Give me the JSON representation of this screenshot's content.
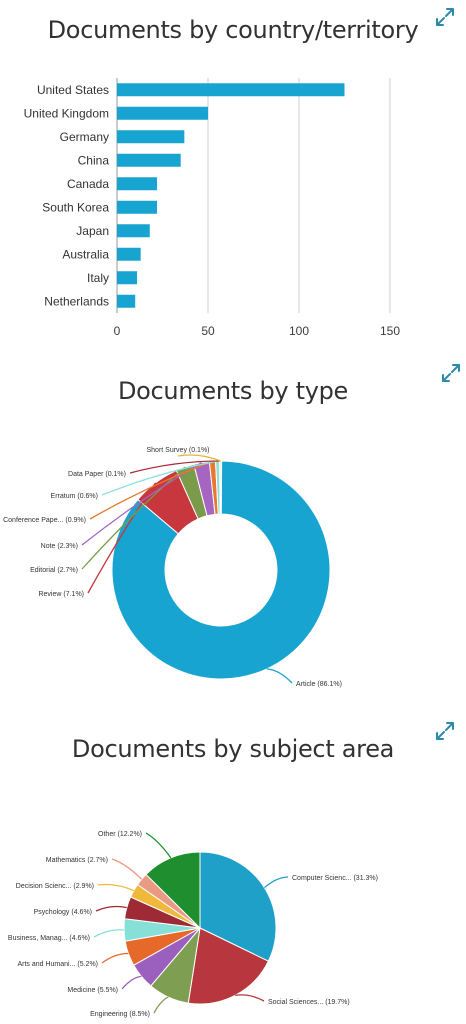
{
  "colors": {
    "bar": "#18A4D1",
    "expand_icon": "#2A8AA8",
    "grid": "#cfcfcf"
  },
  "icons": {
    "expand": "expand-arrows-icon"
  },
  "country": {
    "title": "Documents by country/territory",
    "chart_data": {
      "type": "bar",
      "orientation": "horizontal",
      "categories": [
        "United States",
        "United Kingdom",
        "Germany",
        "China",
        "Canada",
        "South Korea",
        "Japan",
        "Australia",
        "Italy",
        "Netherlands"
      ],
      "values": [
        125,
        50,
        37,
        35,
        22,
        22,
        18,
        13,
        11,
        10
      ],
      "xticks": [
        "0",
        "50",
        "100",
        "150"
      ],
      "xlim": [
        0,
        150
      ],
      "grid": true
    }
  },
  "type": {
    "title": "Documents by type",
    "chart_data": {
      "type": "pie",
      "donut": true,
      "slices": [
        {
          "label": "Article (86.1%)",
          "value": 86.1,
          "color": "#18A4D1"
        },
        {
          "label": "Review (7.1%)",
          "value": 7.1,
          "color": "#C8363E"
        },
        {
          "label": "Editorial (2.7%)",
          "value": 2.7,
          "color": "#7B9A4A"
        },
        {
          "label": "Note (2.3%)",
          "value": 2.3,
          "color": "#A565C0"
        },
        {
          "label": "Conference Pape... (0.9%)",
          "value": 0.9,
          "color": "#E8782E"
        },
        {
          "label": "Erratum (0.6%)",
          "value": 0.6,
          "color": "#8FE0DA"
        },
        {
          "label": "Data Paper (0.1%)",
          "value": 0.1,
          "color": "#A82E3A"
        },
        {
          "label": "Short Survey (0.1%)",
          "value": 0.1,
          "color": "#E8B33A"
        }
      ]
    }
  },
  "subject": {
    "title": "Documents by subject area",
    "chart_data": {
      "type": "pie",
      "slices": [
        {
          "label": "Computer Scienc... (31.3%)",
          "value": 31.3,
          "color": "#1EA0C8"
        },
        {
          "label": "Social Sciences... (19.7%)",
          "value": 19.7,
          "color": "#B8373E"
        },
        {
          "label": "Engineering (8.5%)",
          "value": 8.5,
          "color": "#7E9E52"
        },
        {
          "label": "Medicine (5.5%)",
          "value": 5.5,
          "color": "#9B5FBE"
        },
        {
          "label": "Arts and Humani... (5.2%)",
          "value": 5.2,
          "color": "#E6692A"
        },
        {
          "label": "Business, Manag... (4.6%)",
          "value": 4.6,
          "color": "#86E0D8"
        },
        {
          "label": "Psychology (4.6%)",
          "value": 4.6,
          "color": "#9E2A36"
        },
        {
          "label": "Decision Scienc... (2.9%)",
          "value": 2.9,
          "color": "#F0B93C"
        },
        {
          "label": "Mathematics (2.7%)",
          "value": 2.7,
          "color": "#E89A82"
        },
        {
          "label": "Other (12.2%)",
          "value": 12.2,
          "color": "#1E8E2E"
        }
      ]
    }
  }
}
